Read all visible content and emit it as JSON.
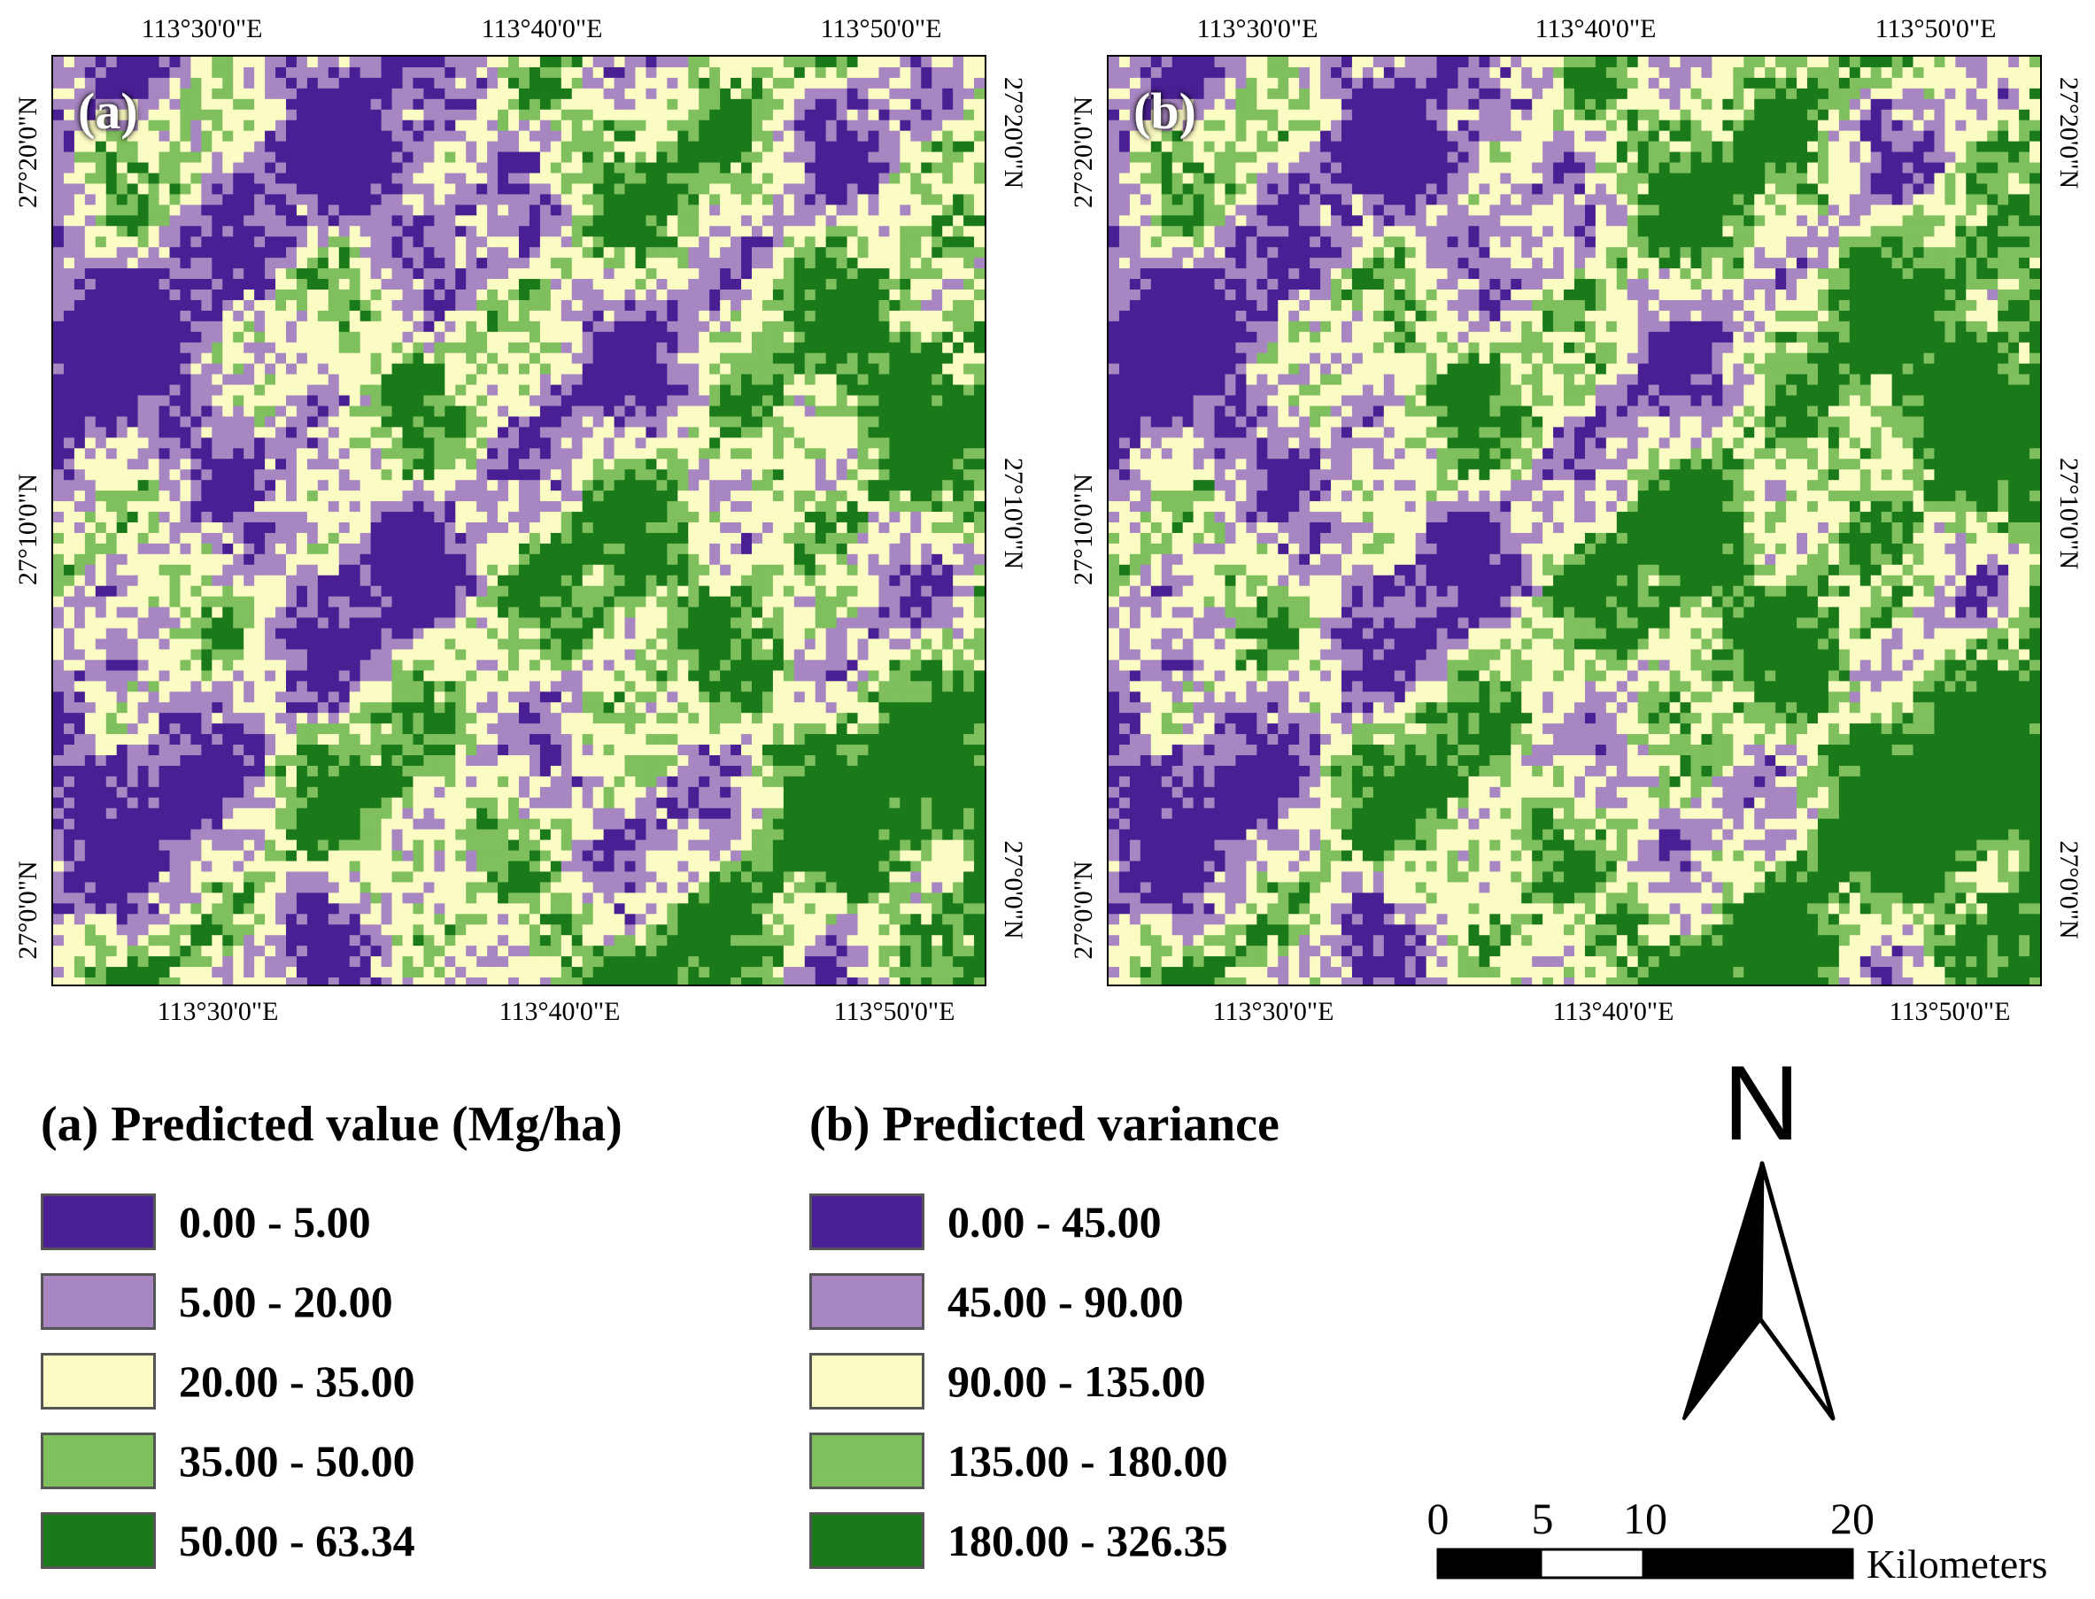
{
  "panels": [
    {
      "label": "(a)",
      "lon_ticks_top": [
        "113°30'0\"E",
        "113°40'0\"E",
        "113°50'0\"E"
      ],
      "lon_ticks_bottom": [
        "113°30'0\"E",
        "113°40'0\"E",
        "113°50'0\"E"
      ],
      "lat_ticks_left": [
        "27°20'0\"N",
        "27°10'0\"N",
        "27°0'0\"N"
      ],
      "lat_ticks_right": [
        "27°20'0\"N",
        "27°10'0\"N",
        "27°0'0\"N"
      ]
    },
    {
      "label": "(b)",
      "lon_ticks_top": [
        "113°30'0\"E",
        "113°40'0\"E",
        "113°50'0\"E"
      ],
      "lon_ticks_bottom": [
        "113°30'0\"E",
        "113°40'0\"E",
        "113°50'0\"E"
      ],
      "lat_ticks_left": [
        "27°20'0\"N",
        "27°10'0\"N",
        "27°0'0\"N"
      ],
      "lat_ticks_right": [
        "27°20'0\"N",
        "27°10'0\"N",
        "27°0'0\"N"
      ]
    }
  ],
  "legend_a": {
    "title": "(a) Predicted value (Mg/ha)",
    "items": [
      {
        "label": "0.00 - 5.00",
        "color": "#4a1f94"
      },
      {
        "label": "5.00 - 20.00",
        "color": "#a886c2"
      },
      {
        "label": "20.00 - 35.00",
        "color": "#fbfbc4"
      },
      {
        "label": "35.00 - 50.00",
        "color": "#7fbf5e"
      },
      {
        "label": "50.00 - 63.34",
        "color": "#1a7a1a"
      }
    ]
  },
  "legend_b": {
    "title": "(b) Predicted variance",
    "items": [
      {
        "label": "0.00 - 45.00",
        "color": "#4a1f94"
      },
      {
        "label": "45.00 - 90.00",
        "color": "#a886c2"
      },
      {
        "label": "90.00 - 135.00",
        "color": "#fbfbc4"
      },
      {
        "label": "135.00 - 180.00",
        "color": "#7fbf5e"
      },
      {
        "label": "180.00 - 326.35",
        "color": "#1a7a1a"
      }
    ]
  },
  "north_arrow": {
    "letter": "N"
  },
  "scale_bar": {
    "labels": [
      "0",
      "5",
      "10",
      "20"
    ],
    "unit": "Kilometers"
  }
}
